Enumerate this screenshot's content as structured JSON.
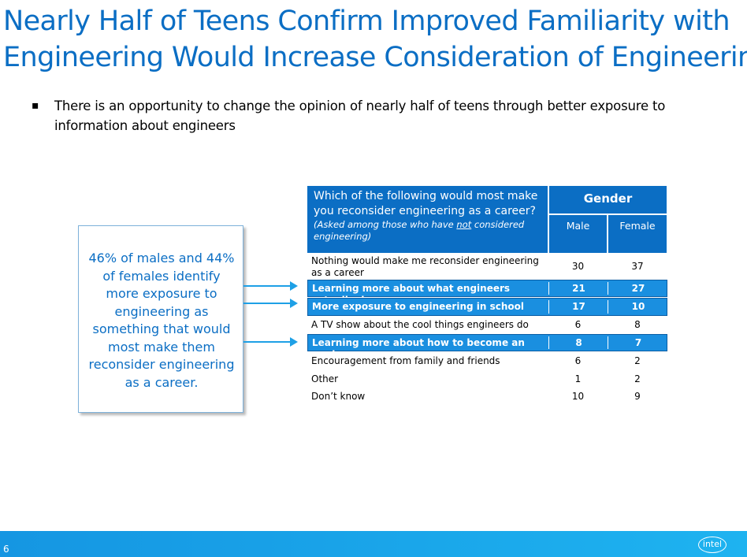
{
  "title": {
    "line1": "Nearly Half of Teens Confirm Improved Familiarity with",
    "line2": "Engineering Would Increase Consideration of  Engineering"
  },
  "bullet": {
    "mark": "▪",
    "text": "There is an opportunity to change the opinion of nearly half of teens through better exposure to information about engineers"
  },
  "callout": {
    "text": "46% of males and 44% of females identify more exposure to engineering as something that would most make them reconsider engineering as a career."
  },
  "table": {
    "question": "Which of the following would most make you reconsider engineering as a career?",
    "note_pre": "(Asked among those who have ",
    "note_underlined": "not",
    "note_post": " considered engineering)",
    "group_header": "Gender",
    "col_male": "Male",
    "col_female": "Female",
    "rows": [
      {
        "label": "Nothing would make me reconsider engineering as a career",
        "male": "30",
        "female": "37"
      },
      {
        "label": "Learning more about what engineers actually do",
        "male": "21",
        "female": "27"
      },
      {
        "label": "More exposure to engineering in school",
        "male": "17",
        "female": "10"
      },
      {
        "label": "A TV show about the cool things engineers do",
        "male": "6",
        "female": "8"
      },
      {
        "label": "Learning more about how to become an engineer",
        "male": "8",
        "female": "7"
      },
      {
        "label": "Encouragement from family and friends",
        "male": "6",
        "female": "2"
      },
      {
        "label": "Other",
        "male": "1",
        "female": "2"
      },
      {
        "label": "Don’t know",
        "male": "10",
        "female": "9"
      }
    ]
  },
  "footer": {
    "page_number": "6",
    "logo_text": "intel"
  },
  "colors": {
    "brand_blue": "#0b6ec4",
    "highlight_blue": "#1a8fe0",
    "arrow_blue": "#1ea0e6"
  }
}
